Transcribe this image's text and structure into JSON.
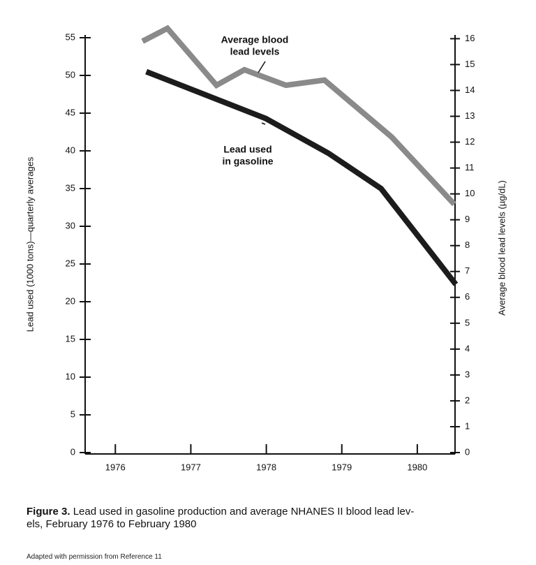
{
  "chart_data": {
    "type": "line",
    "ylabel": "Lead used (1000 tons)—quarterly averages",
    "y2label": "Average blood lead levels (µg/dL)",
    "xlim": [
      1975.6,
      1980.5
    ],
    "xticks": [
      1976,
      1977,
      1978,
      1979,
      1980
    ],
    "ylim": [
      0,
      55
    ],
    "yticks": [
      0,
      5,
      10,
      15,
      20,
      25,
      30,
      35,
      40,
      45,
      50,
      55
    ],
    "y2lim": [
      0,
      16.2
    ],
    "y2ticks": [
      0,
      1,
      2,
      3,
      4,
      5,
      6,
      7,
      8,
      9,
      10,
      11,
      12,
      13,
      14,
      15,
      16
    ],
    "series": [
      {
        "label_lines": [
          "Lead used",
          "in gasoline"
        ],
        "color": "#1c1c1c",
        "x": [
          1976.41,
          1977.99,
          1978.82,
          1979.52,
          1980.51
        ],
        "values": [
          50.5,
          44.3,
          39.7,
          35.0,
          22.3
        ]
      },
      {
        "label_lines": [
          "Average blood",
          "lead levels"
        ],
        "color": "#8a8a8a",
        "axis": "y2",
        "x": [
          1976.36,
          1976.69,
          1977.34,
          1977.71,
          1978.26,
          1978.77,
          1979.66,
          1980.49
        ],
        "values": [
          15.9,
          16.4,
          14.2,
          14.8,
          14.2,
          14.4,
          12.2,
          9.6
        ]
      }
    ],
    "caption_label": "Figure 3.",
    "caption_lines": [
      "Lead used in gasoline production and average NHANES II blood lead lev-",
      "els, February 1976 to February 1980"
    ],
    "note": "Adapted with permission from Reference 11"
  }
}
